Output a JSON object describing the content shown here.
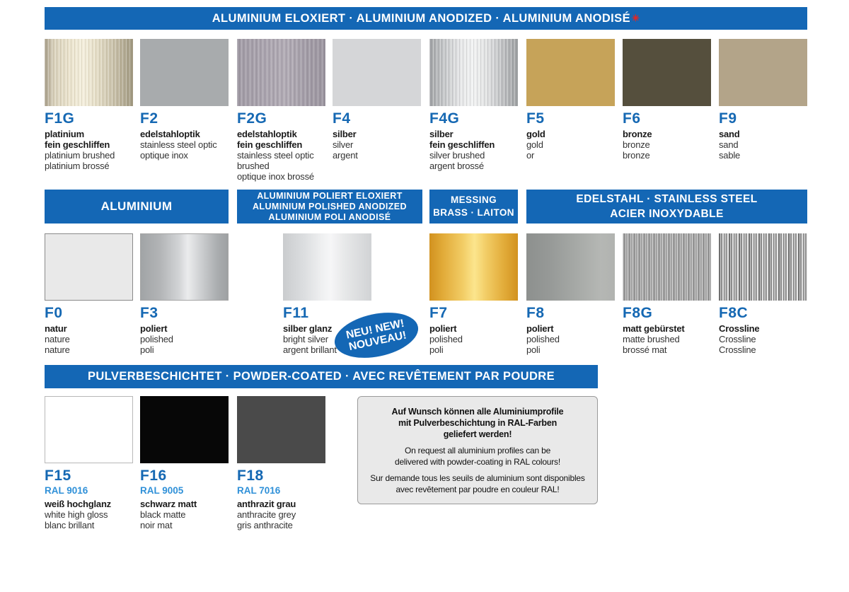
{
  "colors": {
    "header_blue": "#1467b5",
    "code_blue": "#1568b3",
    "ral_blue": "#2f90d8",
    "asterisk_red": "#e8251f",
    "info_box_bg": "#e9e9e9",
    "gold": "#c6a359",
    "bronze": "#554f3d",
    "sand": "#b3a489"
  },
  "section1": {
    "header": "ALUMINIUM ELOXIERT  ·  ALUMINIUM ANODIZED  ·  ALUMINIUM ANODISÉ",
    "asterisk": "✳",
    "swatches": [
      {
        "code": "F1G",
        "bold": "platinium\nfein geschliffen",
        "normal": "platinium brushed\nplatinium brossé"
      },
      {
        "code": "F2",
        "bold": "edelstahloptik",
        "normal": "stainless steel optic\noptique inox"
      },
      {
        "code": "F2G",
        "bold": "edelstahloptik\nfein geschliffen",
        "normal": "stainless steel optic\nbrushed\noptique inox brossé"
      },
      {
        "code": "F4",
        "bold": "silber",
        "normal": "silver\nargent"
      },
      {
        "code": "F4G",
        "bold": "silber\nfein geschliffen",
        "normal": "silver brushed\nargent brossé"
      },
      {
        "code": "F5",
        "bold": "gold",
        "normal": "gold\nor"
      },
      {
        "code": "F6",
        "bold": "bronze",
        "normal": "bronze\nbronze"
      },
      {
        "code": "F9",
        "bold": "sand",
        "normal": "sand\nsable"
      }
    ]
  },
  "section2": {
    "headers": {
      "aluminium": "ALUMINIUM",
      "polished": "ALUMINIUM POLIERT ELOXIERT\nALUMINIUM POLISHED ANODIZED\nALUMINIUM POLI ANODISÉ",
      "brass": "MESSING\nBRASS · LAITON",
      "stainless": "EDELSTAHL  ·  STAINLESS STEEL\nACIER INOXYDABLE"
    },
    "swatches": [
      {
        "code": "F0",
        "bold": "natur",
        "normal": "nature\nnature"
      },
      {
        "code": "F3",
        "bold": "poliert",
        "normal": "polished\npoli"
      },
      {
        "code": "F11",
        "bold": "silber glanz",
        "normal": "bright silver\nargent brillant"
      },
      {
        "code": "F7",
        "bold": "poliert",
        "normal": "polished\npoli"
      },
      {
        "code": "F8",
        "bold": "poliert",
        "normal": "polished\npoli"
      },
      {
        "code": "F8G",
        "bold": "matt gebürstet",
        "normal": "matte brushed\nbrossé mat"
      },
      {
        "code": "F8C",
        "bold": "Crossline",
        "normal": "Crossline\nCrossline"
      }
    ],
    "badge": {
      "line1": "NEU! NEW!",
      "line2": "NOUVEAU!"
    }
  },
  "section3": {
    "header": "PULVERBESCHICHTET  ·  POWDER-COATED · AVEC REVÊTEMENT PAR POUDRE",
    "swatches": [
      {
        "code": "F15",
        "ral": "RAL 9016",
        "bold": "weiß hochglanz",
        "normal": "white high gloss\nblanc brillant"
      },
      {
        "code": "F16",
        "ral": "RAL 9005",
        "bold": "schwarz matt",
        "normal": "black matte\nnoir mat"
      },
      {
        "code": "F18",
        "ral": "RAL 7016",
        "bold": "anthrazit grau",
        "normal": "anthracite grey\ngris anthracite"
      }
    ],
    "info_box": {
      "de": "Auf Wunsch können alle Aluminiumprofile\nmit Pulverbeschichtung in RAL-Farben\ngeliefert werden!",
      "en": "On request all aluminium profiles can be\ndelivered with powder-coating in RAL colours!",
      "fr": "Sur demande tous les seuils de aluminium sont disponibles\navec revêtement par poudre en couleur RAL!"
    }
  }
}
